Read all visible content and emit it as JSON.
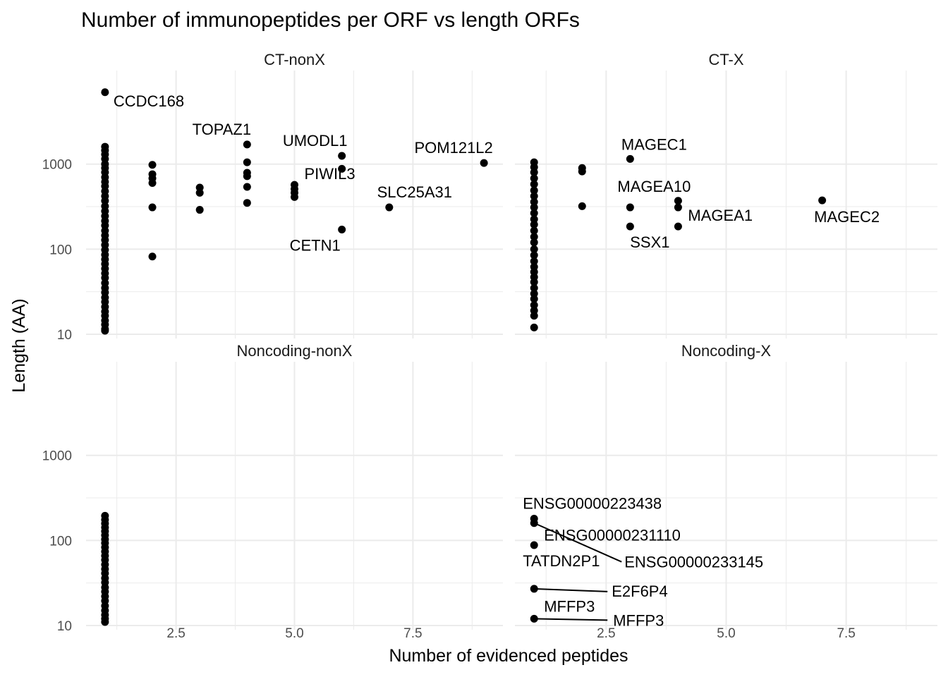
{
  "chart_data": {
    "type": "scatter",
    "title": "Number of immunopeptides per ORF vs length ORFs",
    "xlabel": "Number of evidenced peptides",
    "ylabel": "Length (AA)",
    "xlim": [
      0.6,
      9.4
    ],
    "ylim_log10": [
      0.95,
      4.1
    ],
    "yscale": "log10",
    "x_ticks": [
      2.5,
      5.0,
      7.5
    ],
    "x_tick_labels": [
      "2.5",
      "5.0",
      "7.5"
    ],
    "y_ticks": [
      10,
      100,
      1000
    ],
    "y_tick_labels": [
      "10",
      "100",
      "1000"
    ],
    "grid": true,
    "point_color": "#000000",
    "panels": [
      {
        "name": "CT-nonX",
        "points": [
          {
            "x": 1,
            "y": 7000
          },
          {
            "x": 1,
            "y": 1600
          },
          {
            "x": 1,
            "y": 1450
          },
          {
            "x": 1,
            "y": 1300
          },
          {
            "x": 1,
            "y": 1150
          },
          {
            "x": 1,
            "y": 1000
          },
          {
            "x": 1,
            "y": 900
          },
          {
            "x": 1,
            "y": 800
          },
          {
            "x": 1,
            "y": 700
          },
          {
            "x": 1,
            "y": 620
          },
          {
            "x": 1,
            "y": 550
          },
          {
            "x": 1,
            "y": 480
          },
          {
            "x": 1,
            "y": 420
          },
          {
            "x": 1,
            "y": 370
          },
          {
            "x": 1,
            "y": 320
          },
          {
            "x": 1,
            "y": 280
          },
          {
            "x": 1,
            "y": 245
          },
          {
            "x": 1,
            "y": 215
          },
          {
            "x": 1,
            "y": 190
          },
          {
            "x": 1,
            "y": 165
          },
          {
            "x": 1,
            "y": 145
          },
          {
            "x": 1,
            "y": 128
          },
          {
            "x": 1,
            "y": 112
          },
          {
            "x": 1,
            "y": 98
          },
          {
            "x": 1,
            "y": 86
          },
          {
            "x": 1,
            "y": 76
          },
          {
            "x": 1,
            "y": 67
          },
          {
            "x": 1,
            "y": 59
          },
          {
            "x": 1,
            "y": 52
          },
          {
            "x": 1,
            "y": 46
          },
          {
            "x": 1,
            "y": 40
          },
          {
            "x": 1,
            "y": 35
          },
          {
            "x": 1,
            "y": 31
          },
          {
            "x": 1,
            "y": 27
          },
          {
            "x": 1,
            "y": 24
          },
          {
            "x": 1,
            "y": 21
          },
          {
            "x": 1,
            "y": 18.5
          },
          {
            "x": 1,
            "y": 16.5
          },
          {
            "x": 1,
            "y": 14.5
          },
          {
            "x": 1,
            "y": 13
          },
          {
            "x": 1,
            "y": 11.5
          },
          {
            "x": 1,
            "y": 11
          },
          {
            "x": 2,
            "y": 980
          },
          {
            "x": 2,
            "y": 760
          },
          {
            "x": 2,
            "y": 680
          },
          {
            "x": 2,
            "y": 600
          },
          {
            "x": 2,
            "y": 310
          },
          {
            "x": 2,
            "y": 82
          },
          {
            "x": 3,
            "y": 530
          },
          {
            "x": 3,
            "y": 460
          },
          {
            "x": 3,
            "y": 290
          },
          {
            "x": 4,
            "y": 1700
          },
          {
            "x": 4,
            "y": 1050
          },
          {
            "x": 4,
            "y": 790
          },
          {
            "x": 4,
            "y": 720
          },
          {
            "x": 4,
            "y": 540
          },
          {
            "x": 4,
            "y": 350
          },
          {
            "x": 5,
            "y": 570
          },
          {
            "x": 5,
            "y": 510
          },
          {
            "x": 5,
            "y": 460
          },
          {
            "x": 5,
            "y": 410
          },
          {
            "x": 6,
            "y": 1250
          },
          {
            "x": 6,
            "y": 880
          },
          {
            "x": 6,
            "y": 170
          },
          {
            "x": 7,
            "y": 310
          },
          {
            "x": 9,
            "y": 1030
          }
        ],
        "labels": [
          {
            "text": "CCDC168",
            "x": 1,
            "y": 7000
          },
          {
            "text": "TOPAZ1",
            "x": 4,
            "y": 1700
          },
          {
            "text": "UMODL1",
            "x": 6,
            "y": 1250
          },
          {
            "text": "POM121L2",
            "x": 9,
            "y": 1030
          },
          {
            "text": "PIWIL3",
            "x": 5,
            "y": 570
          },
          {
            "text": "SLC25A31",
            "x": 7,
            "y": 310
          },
          {
            "text": "CETN1",
            "x": 6,
            "y": 170
          }
        ]
      },
      {
        "name": "CT-X",
        "points": [
          {
            "x": 1,
            "y": 1050
          },
          {
            "x": 1,
            "y": 920
          },
          {
            "x": 1,
            "y": 800
          },
          {
            "x": 1,
            "y": 680
          },
          {
            "x": 1,
            "y": 580
          },
          {
            "x": 1,
            "y": 490
          },
          {
            "x": 1,
            "y": 420
          },
          {
            "x": 1,
            "y": 360
          },
          {
            "x": 1,
            "y": 310
          },
          {
            "x": 1,
            "y": 265
          },
          {
            "x": 1,
            "y": 225
          },
          {
            "x": 1,
            "y": 195
          },
          {
            "x": 1,
            "y": 165
          },
          {
            "x": 1,
            "y": 140
          },
          {
            "x": 1,
            "y": 120
          },
          {
            "x": 1,
            "y": 100
          },
          {
            "x": 1,
            "y": 85
          },
          {
            "x": 1,
            "y": 72
          },
          {
            "x": 1,
            "y": 62
          },
          {
            "x": 1,
            "y": 54
          },
          {
            "x": 1,
            "y": 47
          },
          {
            "x": 1,
            "y": 41
          },
          {
            "x": 1,
            "y": 35
          },
          {
            "x": 1,
            "y": 30
          },
          {
            "x": 1,
            "y": 26
          },
          {
            "x": 1,
            "y": 22
          },
          {
            "x": 1,
            "y": 19
          },
          {
            "x": 1,
            "y": 16.5
          },
          {
            "x": 1,
            "y": 12
          },
          {
            "x": 2,
            "y": 900
          },
          {
            "x": 2,
            "y": 820
          },
          {
            "x": 2,
            "y": 320
          },
          {
            "x": 3,
            "y": 1150
          },
          {
            "x": 3,
            "y": 310
          },
          {
            "x": 3,
            "y": 185
          },
          {
            "x": 4,
            "y": 370
          },
          {
            "x": 4,
            "y": 310
          },
          {
            "x": 4,
            "y": 185
          },
          {
            "x": 7,
            "y": 375
          }
        ],
        "labels": [
          {
            "text": "MAGEC1",
            "x": 3,
            "y": 1150
          },
          {
            "text": "MAGEA10",
            "x": 3,
            "y": 310
          },
          {
            "text": "MAGEA1",
            "x": 4,
            "y": 185
          },
          {
            "text": "SSX1",
            "x": 3,
            "y": 185
          },
          {
            "text": "MAGEC2",
            "x": 7,
            "y": 375
          }
        ]
      },
      {
        "name": "Noncoding-nonX",
        "points": [
          {
            "x": 1,
            "y": 195
          },
          {
            "x": 1,
            "y": 175
          },
          {
            "x": 1,
            "y": 158
          },
          {
            "x": 1,
            "y": 142
          },
          {
            "x": 1,
            "y": 128
          },
          {
            "x": 1,
            "y": 115
          },
          {
            "x": 1,
            "y": 103
          },
          {
            "x": 1,
            "y": 93
          },
          {
            "x": 1,
            "y": 83
          },
          {
            "x": 1,
            "y": 74
          },
          {
            "x": 1,
            "y": 66
          },
          {
            "x": 1,
            "y": 59
          },
          {
            "x": 1,
            "y": 52
          },
          {
            "x": 1,
            "y": 46
          },
          {
            "x": 1,
            "y": 41
          },
          {
            "x": 1,
            "y": 36
          },
          {
            "x": 1,
            "y": 32
          },
          {
            "x": 1,
            "y": 28
          },
          {
            "x": 1,
            "y": 25
          },
          {
            "x": 1,
            "y": 22
          },
          {
            "x": 1,
            "y": 19.5
          },
          {
            "x": 1,
            "y": 17
          },
          {
            "x": 1,
            "y": 15
          },
          {
            "x": 1,
            "y": 13.3
          },
          {
            "x": 1,
            "y": 12
          },
          {
            "x": 1,
            "y": 11
          }
        ],
        "labels": []
      },
      {
        "name": "Noncoding-X",
        "points": [
          {
            "x": 1,
            "y": 180
          },
          {
            "x": 1,
            "y": 160
          },
          {
            "x": 1,
            "y": 88
          },
          {
            "x": 1,
            "y": 27
          },
          {
            "x": 1,
            "y": 12
          }
        ],
        "labels": [
          {
            "text": "ENSG00000223438",
            "x": 1,
            "y": 180
          },
          {
            "text": "ENSG00000231110",
            "x": 1,
            "y": 160
          },
          {
            "text": "ENSG00000233145",
            "x": 1,
            "y": 160
          },
          {
            "text": "TATDN2P1",
            "x": 1,
            "y": 88
          },
          {
            "text": "E2F6P4",
            "x": 1,
            "y": 27
          },
          {
            "text": "MFFP3",
            "x": 1,
            "y": 12
          },
          {
            "text": "MFFP3",
            "x": 1,
            "y": 12
          }
        ]
      }
    ]
  }
}
